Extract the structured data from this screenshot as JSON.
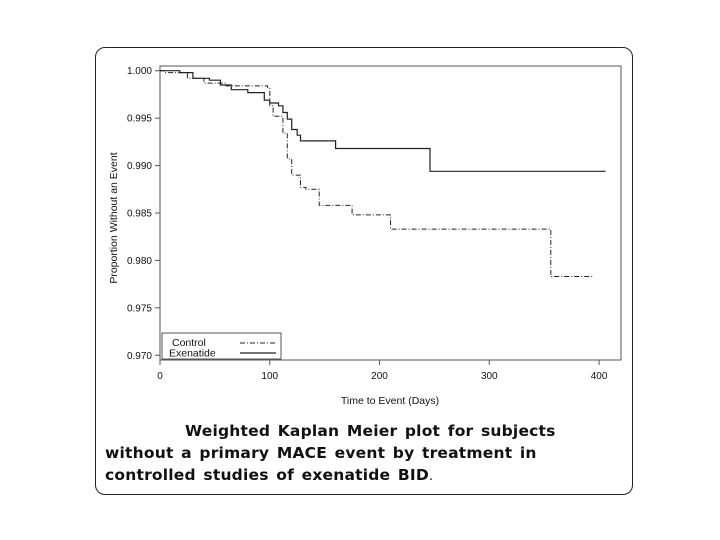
{
  "chart_data": {
    "type": "line",
    "title": "",
    "xlabel": "Time to Event (Days)",
    "ylabel": "Proportion Without an Event",
    "xlim": [
      0,
      420
    ],
    "ylim": [
      0.9695,
      1.0005
    ],
    "xticks": [
      "0",
      "100",
      "200",
      "300",
      "400"
    ],
    "xtick_values": [
      0,
      100,
      200,
      300,
      400
    ],
    "yticks": [
      "1.000",
      "0.995",
      "0.990",
      "0.985",
      "0.980",
      "0.975",
      "0.970"
    ],
    "ytick_values": [
      1.0,
      0.995,
      0.99,
      0.985,
      0.98,
      0.975,
      0.97
    ],
    "grid": false,
    "legend_position": "bottom-left",
    "series": [
      {
        "name": "Control",
        "style": "dash-dot",
        "step": true,
        "points": [
          [
            0,
            1.0
          ],
          [
            5,
            0.9998
          ],
          [
            25,
            0.9992
          ],
          [
            40,
            0.9987
          ],
          [
            60,
            0.9984
          ],
          [
            98,
            0.9982
          ],
          [
            100,
            0.9963
          ],
          [
            103,
            0.9952
          ],
          [
            108,
            0.9952
          ],
          [
            112,
            0.9934
          ],
          [
            116,
            0.9907
          ],
          [
            120,
            0.989
          ],
          [
            128,
            0.9877
          ],
          [
            133,
            0.9875
          ],
          [
            145,
            0.9858
          ],
          [
            150,
            0.9858
          ],
          [
            175,
            0.9848
          ],
          [
            190,
            0.9848
          ],
          [
            210,
            0.9833
          ],
          [
            354,
            0.9833
          ],
          [
            356,
            0.9783
          ],
          [
            395,
            0.9783
          ]
        ]
      },
      {
        "name": "Exenatide",
        "style": "solid",
        "step": true,
        "points": [
          [
            0,
            1.0
          ],
          [
            18,
            0.9998
          ],
          [
            30,
            0.9992
          ],
          [
            45,
            0.999
          ],
          [
            55,
            0.9985
          ],
          [
            65,
            0.998
          ],
          [
            80,
            0.9977
          ],
          [
            95,
            0.9969
          ],
          [
            100,
            0.9966
          ],
          [
            108,
            0.9963
          ],
          [
            112,
            0.9956
          ],
          [
            116,
            0.9949
          ],
          [
            120,
            0.9938
          ],
          [
            125,
            0.9932
          ],
          [
            128,
            0.9926
          ],
          [
            133,
            0.9926
          ],
          [
            160,
            0.9918
          ],
          [
            245,
            0.9918
          ],
          [
            246,
            0.9894
          ],
          [
            406,
            0.9894
          ]
        ]
      }
    ]
  },
  "caption": {
    "text": "Weighted Kaplan Meier plot for subjects without a primary MACE event by treatment in controlled studies of exenatide BID",
    "tail": "."
  }
}
